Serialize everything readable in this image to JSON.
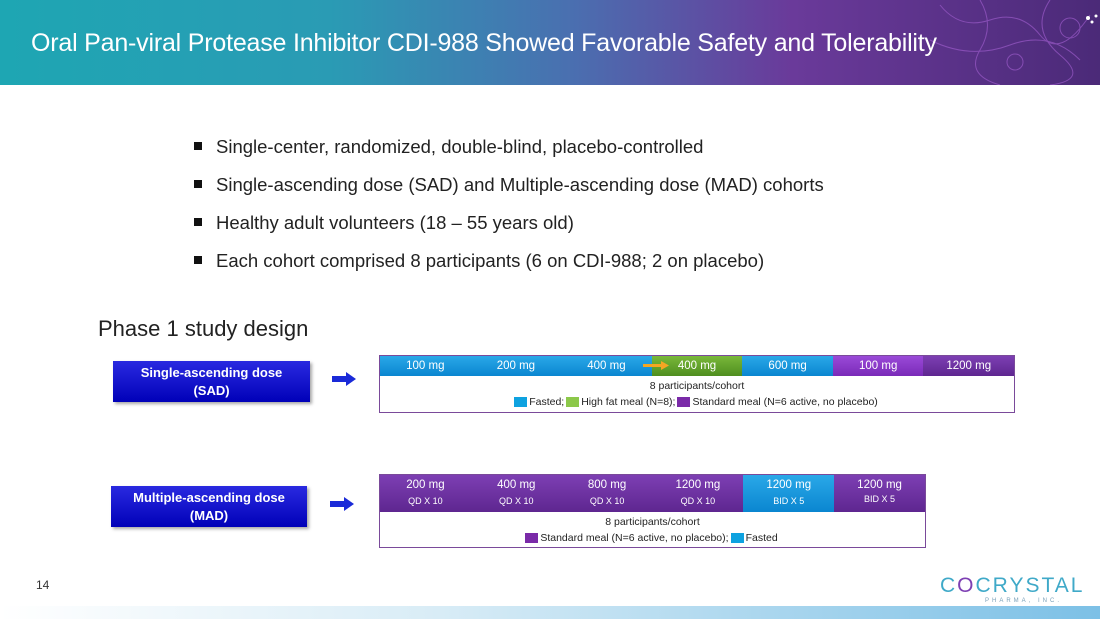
{
  "header": {
    "title": "Oral Pan-viral Protease Inhibitor CDI-988 Showed Favorable Safety and Tolerability"
  },
  "bullets": [
    "Single-center, randomized, double-blind, placebo-controlled",
    "Single-ascending dose (SAD) and Multiple-ascending dose (MAD) cohorts",
    "Healthy adult volunteers (18 – 55 years old)",
    "Each cohort comprised 8 participants (6 on CDI-988; 2 on placebo)"
  ],
  "section_title": "Phase 1 study design",
  "sad": {
    "label_line1": "Single-ascending dose",
    "label_line2": "(SAD)",
    "doses": [
      {
        "label": "100 mg",
        "color": "#0a86d0"
      },
      {
        "label": "200  mg",
        "color": "#0a86d0"
      },
      {
        "label": "400 mg",
        "color": "#0a86d0"
      },
      {
        "label": "400 mg",
        "color": "#4f8e1f"
      },
      {
        "label": "600 mg",
        "color": "#0a86d0"
      },
      {
        "label": "100 mg",
        "color": "#7a2ab8"
      },
      {
        "label": "1200 mg",
        "color": "#5e2690"
      }
    ],
    "participants": "8 participants/cohort",
    "legend": [
      {
        "text": "Fasted;",
        "color": "#0ea2e0"
      },
      {
        "text": "High fat meal (N=8);",
        "color": "#8cc84a"
      },
      {
        "text": "Standard meal (N=6 active, no placebo)",
        "color": "#7a2aa8"
      }
    ]
  },
  "mad": {
    "label_line1": "Multiple-ascending dose",
    "label_line2": "(MAD)",
    "doses": [
      {
        "label": "200 mg",
        "sub": "QD X 10",
        "color": "#5e2690"
      },
      {
        "label": "400  mg",
        "sub": "QD X 10",
        "color": "#5e2690"
      },
      {
        "label": "800 mg",
        "sub": "QD X 10",
        "color": "#5e2690"
      },
      {
        "label": "1200 mg",
        "sub": "QD X 10",
        "color": "#5e2690"
      },
      {
        "label": "1200 mg",
        "sub": "BID X 5",
        "color": "#0a86d0"
      },
      {
        "label": "1200 mg",
        "sub": "BID X 5",
        "color": "#5e2690"
      }
    ],
    "participants": "8 participants/cohort",
    "legend": [
      {
        "text": "Standard meal (N=6 active, no placebo);",
        "color": "#7a2aa8"
      },
      {
        "text": "Fasted",
        "color": "#0ea2e0"
      }
    ]
  },
  "footer": {
    "page_number": "14",
    "logo_main_left": "C",
    "logo_main_o": "O",
    "logo_main_right": "CRYSTAL",
    "logo_sub": "PHARMA, INC."
  }
}
